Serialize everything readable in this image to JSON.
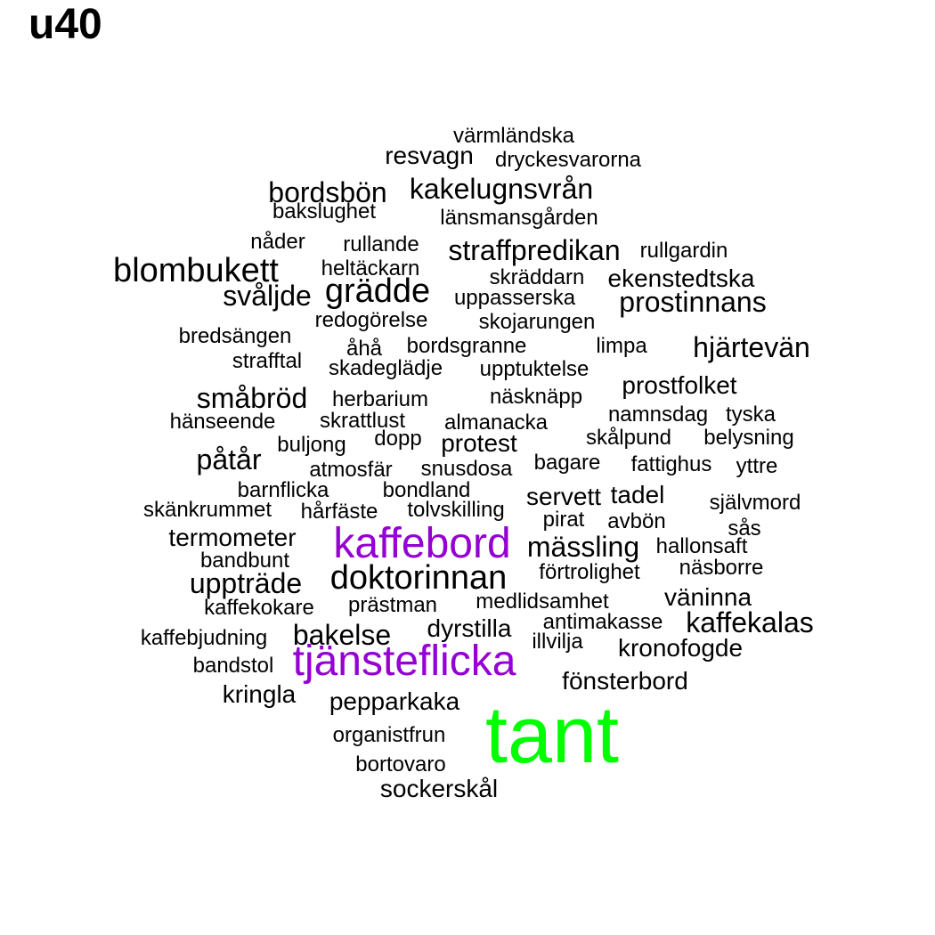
{
  "title": "u40",
  "colors": {
    "default": "#000000",
    "purple": "#9400D3",
    "green": "#00FF00"
  },
  "words": [
    {
      "text": "värmländska",
      "size": "s"
    },
    {
      "text": "resvagn",
      "size": "m"
    },
    {
      "text": "dryckesvarorna",
      "size": "s"
    },
    {
      "text": "kakelugnsvrån",
      "size": "l"
    },
    {
      "text": "bordsbön",
      "size": "l"
    },
    {
      "text": "bakslughet",
      "size": "s"
    },
    {
      "text": "länsmansgården",
      "size": "s"
    },
    {
      "text": "nåder",
      "size": "s"
    },
    {
      "text": "rullande",
      "size": "s"
    },
    {
      "text": "straffpredikan",
      "size": "l"
    },
    {
      "text": "rullgardin",
      "size": "s"
    },
    {
      "text": "blombukett",
      "size": "xl"
    },
    {
      "text": "heltäckarn",
      "size": "s"
    },
    {
      "text": "skräddarn",
      "size": "s"
    },
    {
      "text": "ekenstedtska",
      "size": "m"
    },
    {
      "text": "svåljde",
      "size": "l"
    },
    {
      "text": "grädde",
      "size": "xl"
    },
    {
      "text": "uppasserska",
      "size": "s"
    },
    {
      "text": "prostinnans",
      "size": "l"
    },
    {
      "text": "redogörelse",
      "size": "s"
    },
    {
      "text": "skojarungen",
      "size": "s"
    },
    {
      "text": "bredsängen",
      "size": "s"
    },
    {
      "text": "åhå",
      "size": "s"
    },
    {
      "text": "bordsgranne",
      "size": "s"
    },
    {
      "text": "limpa",
      "size": "s"
    },
    {
      "text": "hjärtevän",
      "size": "l"
    },
    {
      "text": "strafftal",
      "size": "s"
    },
    {
      "text": "skadeglädje",
      "size": "s"
    },
    {
      "text": "upptuktelse",
      "size": "s"
    },
    {
      "text": "prostfolket",
      "size": "m"
    },
    {
      "text": "småbröd",
      "size": "l"
    },
    {
      "text": "herbarium",
      "size": "s"
    },
    {
      "text": "näsknäpp",
      "size": "s"
    },
    {
      "text": "hänseende",
      "size": "s"
    },
    {
      "text": "skrattlust",
      "size": "s"
    },
    {
      "text": "almanacka",
      "size": "s"
    },
    {
      "text": "namnsdag",
      "size": "s"
    },
    {
      "text": "tyska",
      "size": "s"
    },
    {
      "text": "dopp",
      "size": "s"
    },
    {
      "text": "buljong",
      "size": "s"
    },
    {
      "text": "protest",
      "size": "m"
    },
    {
      "text": "skålpund",
      "size": "s"
    },
    {
      "text": "belysning",
      "size": "s"
    },
    {
      "text": "påtår",
      "size": "l"
    },
    {
      "text": "atmosfär",
      "size": "s"
    },
    {
      "text": "snusdosa",
      "size": "s"
    },
    {
      "text": "bagare",
      "size": "s"
    },
    {
      "text": "fattighus",
      "size": "s"
    },
    {
      "text": "yttre",
      "size": "s"
    },
    {
      "text": "barnflicka",
      "size": "s"
    },
    {
      "text": "bondland",
      "size": "s"
    },
    {
      "text": "servett",
      "size": "m"
    },
    {
      "text": "tadel",
      "size": "m"
    },
    {
      "text": "skänkrummet",
      "size": "s"
    },
    {
      "text": "hårfäste",
      "size": "s"
    },
    {
      "text": "tolvskilling",
      "size": "s"
    },
    {
      "text": "pirat",
      "size": "s"
    },
    {
      "text": "självmord",
      "size": "s"
    },
    {
      "text": "avbön",
      "size": "s"
    },
    {
      "text": "sås",
      "size": "s"
    },
    {
      "text": "termometer",
      "size": "m"
    },
    {
      "text": "kaffebord",
      "size": "xxl",
      "color": "purple"
    },
    {
      "text": "mässling",
      "size": "l"
    },
    {
      "text": "hallonsaft",
      "size": "s"
    },
    {
      "text": "bandbunt",
      "size": "s"
    },
    {
      "text": "förtrolighet",
      "size": "s"
    },
    {
      "text": "näsborre",
      "size": "s"
    },
    {
      "text": "uppträde",
      "size": "l"
    },
    {
      "text": "doktorinnan",
      "size": "xl"
    },
    {
      "text": "medlidsamhet",
      "size": "s"
    },
    {
      "text": "väninna",
      "size": "m"
    },
    {
      "text": "kaffekokare",
      "size": "s"
    },
    {
      "text": "prästman",
      "size": "s"
    },
    {
      "text": "antimakasse",
      "size": "s"
    },
    {
      "text": "kaffekalas",
      "size": "l"
    },
    {
      "text": "dyrstilla",
      "size": "m"
    },
    {
      "text": "illvilja",
      "size": "s"
    },
    {
      "text": "kaffebjudning",
      "size": "s"
    },
    {
      "text": "bakelse",
      "size": "l"
    },
    {
      "text": "kronofogde",
      "size": "m"
    },
    {
      "text": "tjänsteflicka",
      "size": "xxl",
      "color": "purple"
    },
    {
      "text": "bandstol",
      "size": "s"
    },
    {
      "text": "fönsterbord",
      "size": "m"
    },
    {
      "text": "kringla",
      "size": "m"
    },
    {
      "text": "pepparkaka",
      "size": "m"
    },
    {
      "text": "tant",
      "size": "xxxl",
      "color": "green"
    },
    {
      "text": "organistfrun",
      "size": "s"
    },
    {
      "text": "bortovaro",
      "size": "s"
    },
    {
      "text": "sockerskål",
      "size": "m"
    }
  ]
}
